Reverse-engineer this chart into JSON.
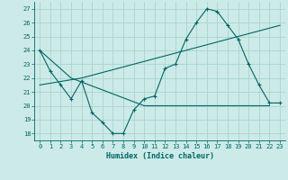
{
  "xlabel": "Humidex (Indice chaleur)",
  "bg_color": "#cceae7",
  "line_color": "#006666",
  "grid_color": "#aad4d0",
  "ylim": [
    17.5,
    27.5
  ],
  "xlim": [
    -0.5,
    23.5
  ],
  "yticks": [
    18,
    19,
    20,
    21,
    22,
    23,
    24,
    25,
    26,
    27
  ],
  "xticks": [
    0,
    1,
    2,
    3,
    4,
    5,
    6,
    7,
    8,
    9,
    10,
    11,
    12,
    13,
    14,
    15,
    16,
    17,
    18,
    19,
    20,
    21,
    22,
    23
  ],
  "line1_x": [
    0,
    1,
    2,
    3,
    4,
    5,
    6,
    7,
    8,
    9,
    10,
    11,
    12,
    13,
    14,
    15,
    16,
    17,
    18,
    19,
    20,
    21,
    22,
    23
  ],
  "line1_y": [
    24.0,
    22.5,
    21.5,
    20.5,
    21.8,
    19.5,
    18.8,
    18.0,
    18.0,
    19.7,
    20.5,
    20.7,
    22.7,
    23.0,
    24.8,
    26.0,
    27.0,
    26.8,
    25.8,
    24.8,
    23.0,
    21.5,
    20.2,
    20.2
  ],
  "line2_x": [
    0,
    3,
    10,
    22
  ],
  "line2_y": [
    24.0,
    22.0,
    20.0,
    20.0
  ],
  "line3_x": [
    0,
    4,
    23
  ],
  "line3_y": [
    21.5,
    22.0,
    25.8
  ],
  "tick_fontsize": 5.0,
  "label_fontsize": 6.0
}
